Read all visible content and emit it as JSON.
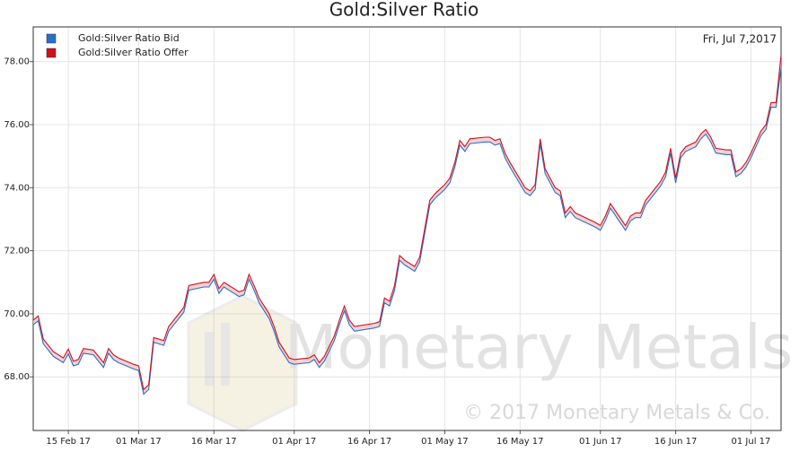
{
  "chart_data": {
    "type": "line",
    "title": "Gold:Silver Ratio",
    "date_note": "Fri, Jul 7,2017",
    "watermark": "Monetary Metals",
    "copyright": "© 2017 Monetary Metals & Co.",
    "legend": "upper left",
    "grid": true,
    "xlim": [
      "2017-02-08",
      "2017-07-07"
    ],
    "xticks": [
      {
        "value": "2017-02-15",
        "label": "15 Feb 17"
      },
      {
        "value": "2017-03-01",
        "label": "01 Mar 17"
      },
      {
        "value": "2017-03-16",
        "label": "16 Mar 17"
      },
      {
        "value": "2017-04-01",
        "label": "01 Apr 17"
      },
      {
        "value": "2017-04-16",
        "label": "16 Apr 17"
      },
      {
        "value": "2017-05-01",
        "label": "01 May 17"
      },
      {
        "value": "2017-05-16",
        "label": "16 May 17"
      },
      {
        "value": "2017-06-01",
        "label": "01 Jun 17"
      },
      {
        "value": "2017-06-16",
        "label": "16 Jun 17"
      },
      {
        "value": "2017-07-01",
        "label": "01 Jul 17"
      }
    ],
    "ylim": [
      66.3,
      79.1
    ],
    "yticks": [
      {
        "value": 68,
        "label": "68.00"
      },
      {
        "value": 70,
        "label": "70.00"
      },
      {
        "value": 72,
        "label": "72.00"
      },
      {
        "value": 74,
        "label": "74.00"
      },
      {
        "value": 76,
        "label": "76.00"
      },
      {
        "value": 78,
        "label": "78.00"
      }
    ],
    "x": [
      "2017-02-08",
      "2017-02-09",
      "2017-02-10",
      "2017-02-12",
      "2017-02-14",
      "2017-02-15",
      "2017-02-16",
      "2017-02-17",
      "2017-02-18",
      "2017-02-20",
      "2017-02-22",
      "2017-02-23",
      "2017-02-24",
      "2017-02-25",
      "2017-02-28",
      "2017-03-01",
      "2017-03-02",
      "2017-03-03",
      "2017-03-04",
      "2017-03-06",
      "2017-03-07",
      "2017-03-08",
      "2017-03-10",
      "2017-03-11",
      "2017-03-14",
      "2017-03-15",
      "2017-03-16",
      "2017-03-17",
      "2017-03-18",
      "2017-03-21",
      "2017-03-22",
      "2017-03-23",
      "2017-03-24",
      "2017-03-25",
      "2017-03-27",
      "2017-03-28",
      "2017-03-29",
      "2017-03-31",
      "2017-04-01",
      "2017-04-04",
      "2017-04-05",
      "2017-04-06",
      "2017-04-07",
      "2017-04-09",
      "2017-04-10",
      "2017-04-11",
      "2017-04-12",
      "2017-04-13",
      "2017-04-17",
      "2017-04-18",
      "2017-04-19",
      "2017-04-20",
      "2017-04-21",
      "2017-04-22",
      "2017-04-23",
      "2017-04-25",
      "2017-04-26",
      "2017-04-27",
      "2017-04-28",
      "2017-04-29",
      "2017-05-01",
      "2017-05-02",
      "2017-05-03",
      "2017-05-04",
      "2017-05-05",
      "2017-05-06",
      "2017-05-09",
      "2017-05-10",
      "2017-05-11",
      "2017-05-12",
      "2017-05-13",
      "2017-05-14",
      "2017-05-17",
      "2017-05-18",
      "2017-05-19",
      "2017-05-20",
      "2017-05-21",
      "2017-05-23",
      "2017-05-24",
      "2017-05-25",
      "2017-05-26",
      "2017-05-27",
      "2017-05-31",
      "2017-06-01",
      "2017-06-02",
      "2017-06-03",
      "2017-06-06",
      "2017-06-07",
      "2017-06-08",
      "2017-06-09",
      "2017-06-10",
      "2017-06-13",
      "2017-06-14",
      "2017-06-15",
      "2017-06-16",
      "2017-06-17",
      "2017-06-18",
      "2017-06-20",
      "2017-06-21",
      "2017-06-22",
      "2017-06-23",
      "2017-06-24",
      "2017-06-26",
      "2017-06-27",
      "2017-06-28",
      "2017-06-29",
      "2017-06-30",
      "2017-07-01",
      "2017-07-03",
      "2017-07-04",
      "2017-07-05",
      "2017-07-06",
      "2017-07-07"
    ],
    "series": [
      {
        "name": "Gold:Silver Ratio Bid",
        "color": "#2a6fc9",
        "values": [
          69.65,
          69.78,
          69.05,
          68.65,
          68.45,
          68.73,
          68.35,
          68.4,
          68.75,
          68.7,
          68.3,
          68.75,
          68.55,
          68.45,
          68.25,
          68.2,
          67.45,
          67.6,
          69.1,
          69.0,
          69.45,
          69.65,
          70.05,
          70.75,
          70.85,
          70.85,
          71.1,
          70.65,
          70.85,
          70.55,
          70.6,
          71.1,
          70.75,
          70.35,
          69.85,
          69.45,
          68.95,
          68.45,
          68.4,
          68.45,
          68.55,
          68.3,
          68.5,
          69.15,
          69.65,
          70.1,
          69.65,
          69.45,
          69.55,
          69.6,
          70.35,
          70.25,
          70.75,
          71.7,
          71.55,
          71.35,
          71.65,
          72.55,
          73.45,
          73.65,
          73.95,
          74.15,
          74.65,
          75.35,
          75.15,
          75.4,
          75.45,
          75.45,
          75.35,
          75.4,
          74.95,
          74.65,
          73.85,
          73.75,
          73.95,
          75.4,
          74.45,
          73.85,
          73.75,
          73.05,
          73.25,
          73.05,
          72.75,
          72.65,
          72.95,
          73.35,
          72.65,
          72.95,
          73.05,
          73.05,
          73.45,
          74.05,
          74.35,
          75.1,
          74.15,
          74.95,
          75.15,
          75.3,
          75.55,
          75.7,
          75.45,
          75.1,
          75.05,
          75.05,
          74.35,
          74.45,
          74.65,
          74.95,
          75.65,
          75.85,
          76.55,
          76.55,
          77.8
        ]
      },
      {
        "name": "Gold:Silver Ratio Offer",
        "color": "#d0101a",
        "values": [
          69.8,
          69.93,
          69.2,
          68.8,
          68.6,
          68.88,
          68.5,
          68.55,
          68.9,
          68.85,
          68.45,
          68.9,
          68.7,
          68.6,
          68.4,
          68.35,
          67.6,
          67.75,
          69.25,
          69.15,
          69.6,
          69.8,
          70.2,
          70.9,
          71.0,
          71.0,
          71.25,
          70.8,
          71.0,
          70.7,
          70.75,
          71.25,
          70.9,
          70.5,
          70.0,
          69.6,
          69.1,
          68.6,
          68.55,
          68.6,
          68.7,
          68.45,
          68.65,
          69.3,
          69.8,
          70.25,
          69.8,
          69.6,
          69.7,
          69.75,
          70.5,
          70.4,
          70.9,
          71.85,
          71.7,
          71.5,
          71.8,
          72.7,
          73.6,
          73.8,
          74.1,
          74.3,
          74.8,
          75.5,
          75.3,
          75.55,
          75.6,
          75.6,
          75.5,
          75.55,
          75.1,
          74.8,
          74.0,
          73.9,
          74.1,
          75.55,
          74.6,
          74.0,
          73.9,
          73.2,
          73.4,
          73.2,
          72.9,
          72.8,
          73.1,
          73.5,
          72.8,
          73.1,
          73.2,
          73.2,
          73.6,
          74.2,
          74.5,
          75.25,
          74.3,
          75.1,
          75.3,
          75.45,
          75.7,
          75.85,
          75.6,
          75.25,
          75.2,
          75.2,
          74.5,
          74.6,
          74.8,
          75.1,
          75.8,
          76.0,
          76.7,
          76.7,
          78.2
        ]
      }
    ]
  }
}
